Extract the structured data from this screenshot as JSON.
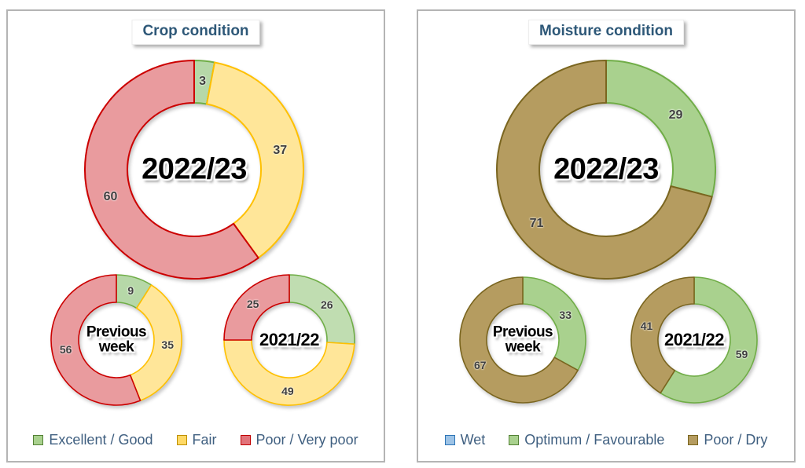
{
  "panels": [
    {
      "title": "Crop condition",
      "legend": [
        {
          "label": "Excellent / Good",
          "fill": "#A9D18E",
          "stroke": "#538135"
        },
        {
          "label": "Fair",
          "fill": "#FFD966",
          "stroke": "#BF9000"
        },
        {
          "label": "Poor / Very poor",
          "fill": "#E2737A",
          "stroke": "#C00000"
        }
      ]
    },
    {
      "title": "Moisture condition",
      "legend": [
        {
          "label": "Wet",
          "fill": "#9DC3E6",
          "stroke": "#2E75B6"
        },
        {
          "label": "Optimum / Favourable",
          "fill": "#A9D18E",
          "stroke": "#538135"
        },
        {
          "label": "Poor / Dry",
          "fill": "#B59C60",
          "stroke": "#7A651F"
        }
      ]
    }
  ],
  "chart_data": [
    {
      "id": "crop-2022-23",
      "type": "donut",
      "panel": "Crop condition",
      "center_label": "2022/23",
      "units": "percent",
      "start_angle_deg": 0,
      "direction": "clockwise",
      "slices": [
        {
          "label": "Excellent / Good",
          "value": 3,
          "fill": "#B6D8A8",
          "stroke": "#6FAD46"
        },
        {
          "label": "Fair",
          "value": 37,
          "fill": "#FFE699",
          "stroke": "#FFC000"
        },
        {
          "label": "Poor / Very poor",
          "value": 60,
          "fill": "#E99B9E",
          "stroke": "#CC0000"
        }
      ]
    },
    {
      "id": "crop-prev-week",
      "type": "donut",
      "panel": "Crop condition",
      "center_label": "Previous week",
      "units": "percent",
      "start_angle_deg": 0,
      "direction": "clockwise",
      "slices": [
        {
          "label": "Excellent / Good",
          "value": 9,
          "fill": "#B6D8A8",
          "stroke": "#6FAD46"
        },
        {
          "label": "Fair",
          "value": 35,
          "fill": "#FFE699",
          "stroke": "#FFC000"
        },
        {
          "label": "Poor / Very poor",
          "value": 56,
          "fill": "#E99B9E",
          "stroke": "#CC0000"
        }
      ]
    },
    {
      "id": "crop-2021-22",
      "type": "donut",
      "panel": "Crop condition",
      "center_label": "2021/22",
      "units": "percent",
      "start_angle_deg": 0,
      "direction": "clockwise",
      "slices": [
        {
          "label": "Excellent / Good",
          "value": 26,
          "fill": "#C0DDB1",
          "stroke": "#6FAD46"
        },
        {
          "label": "Fair",
          "value": 49,
          "fill": "#FFE699",
          "stroke": "#FFC000"
        },
        {
          "label": "Poor / Very poor",
          "value": 25,
          "fill": "#E99B9E",
          "stroke": "#CC0000"
        }
      ]
    },
    {
      "id": "moist-2022-23",
      "type": "donut",
      "panel": "Moisture condition",
      "center_label": "2022/23",
      "units": "percent",
      "start_angle_deg": 0,
      "direction": "clockwise",
      "slices": [
        {
          "label": "Optimum / Favourable",
          "value": 29,
          "fill": "#A9D18E",
          "stroke": "#70AD47"
        },
        {
          "label": "Poor / Dry",
          "value": 71,
          "fill": "#B59C60",
          "stroke": "#7A651F"
        }
      ]
    },
    {
      "id": "moist-prev-week",
      "type": "donut",
      "panel": "Moisture condition",
      "center_label": "Previous week",
      "units": "percent",
      "start_angle_deg": 0,
      "direction": "clockwise",
      "slices": [
        {
          "label": "Optimum / Favourable",
          "value": 33,
          "fill": "#A9D18E",
          "stroke": "#70AD47"
        },
        {
          "label": "Poor / Dry",
          "value": 67,
          "fill": "#B59C60",
          "stroke": "#7A651F"
        }
      ]
    },
    {
      "id": "moist-2021-22",
      "type": "donut",
      "panel": "Moisture condition",
      "center_label": "2021/22",
      "units": "percent",
      "start_angle_deg": 0,
      "direction": "clockwise",
      "slices": [
        {
          "label": "Optimum / Favourable",
          "value": 59,
          "fill": "#A9D18E",
          "stroke": "#70AD47"
        },
        {
          "label": "Poor / Dry",
          "value": 41,
          "fill": "#B59C60",
          "stroke": "#7A651F"
        }
      ]
    }
  ]
}
